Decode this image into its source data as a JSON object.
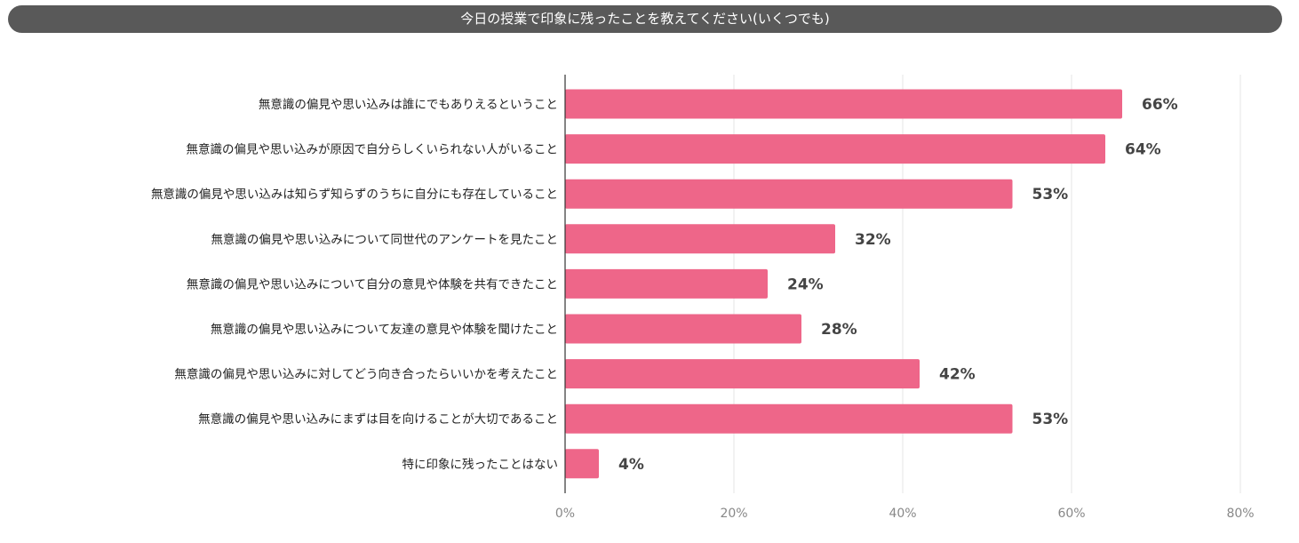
{
  "chart_data": {
    "type": "bar",
    "orientation": "horizontal",
    "title": "今日の授業で印象に残ったことを教えてください(いくつでも)",
    "categories": [
      "無意識の偏見や思い込みは誰にでもありえるということ",
      "無意識の偏見や思い込みが原因で自分らしくいられない人がいること",
      "無意識の偏見や思い込みは知らず知らずのうちに自分にも存在していること",
      "無意識の偏見や思い込みについて同世代のアンケートを見たこと",
      "無意識の偏見や思い込みについて自分の意見や体験を共有できたこと",
      "無意識の偏見や思い込みについて友達の意見や体験を聞けたこと",
      "無意識の偏見や思い込みに対してどう向き合ったらいいかを考えたこと",
      "無意識の偏見や思い込みにまずは目を向けることが大切であること",
      "特に印象に残ったことはない"
    ],
    "values": [
      66,
      64,
      53,
      32,
      24,
      28,
      42,
      53,
      4
    ],
    "value_labels": [
      "66%",
      "64%",
      "53%",
      "32%",
      "24%",
      "28%",
      "42%",
      "53%",
      "4%"
    ],
    "xlim": [
      0,
      80
    ],
    "x_ticks": [
      0,
      20,
      40,
      60,
      80
    ],
    "x_tick_labels": [
      "0%",
      "20%",
      "40%",
      "60%",
      "80%"
    ],
    "grid": true,
    "bar_color": "#ee6689",
    "title_bar_color": "#595959"
  }
}
